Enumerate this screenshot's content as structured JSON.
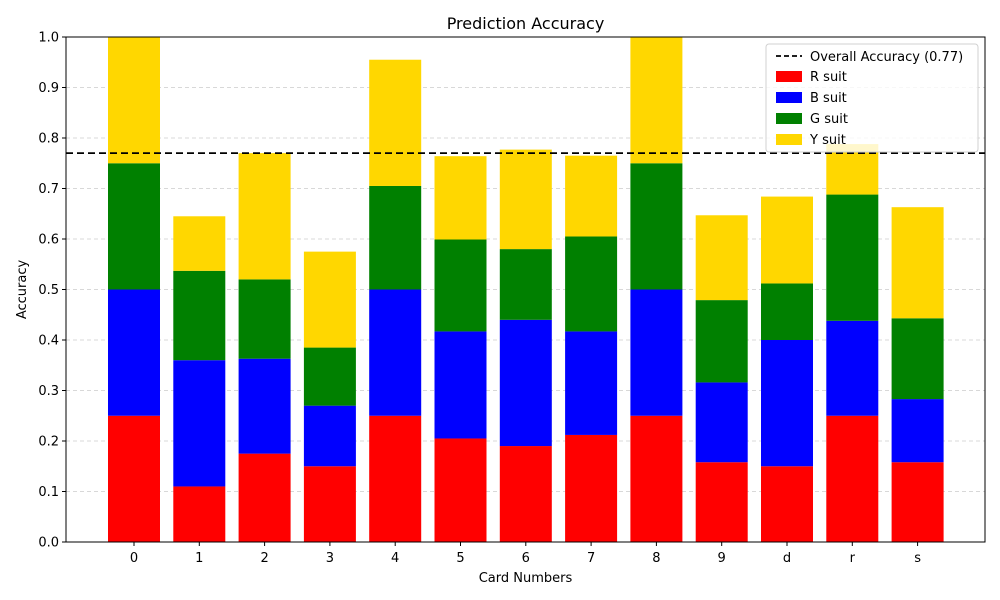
{
  "chart_data": {
    "type": "bar",
    "stacked": true,
    "title": "Prediction Accuracy",
    "xlabel": "Card Numbers",
    "ylabel": "Accuracy",
    "ylim": [
      0,
      1.0
    ],
    "yticks": [
      "0.0",
      "0.1",
      "0.2",
      "0.3",
      "0.4",
      "0.5",
      "0.6",
      "0.7",
      "0.8",
      "0.9",
      "1.0"
    ],
    "grid": "horizontal-dashed",
    "categories": [
      "0",
      "1",
      "2",
      "3",
      "4",
      "5",
      "6",
      "7",
      "8",
      "9",
      "d",
      "r",
      "s"
    ],
    "series": [
      {
        "name": "R suit",
        "color": "#ff0000",
        "values": [
          0.25,
          0.11,
          0.175,
          0.15,
          0.25,
          0.205,
          0.19,
          0.212,
          0.25,
          0.158,
          0.15,
          0.25,
          0.158
        ]
      },
      {
        "name": "B suit",
        "color": "#0000ff",
        "values": [
          0.25,
          0.25,
          0.188,
          0.12,
          0.25,
          0.212,
          0.25,
          0.205,
          0.25,
          0.158,
          0.25,
          0.188,
          0.125
        ]
      },
      {
        "name": "G suit",
        "color": "#008000",
        "values": [
          0.25,
          0.177,
          0.157,
          0.115,
          0.205,
          0.182,
          0.14,
          0.188,
          0.25,
          0.163,
          0.112,
          0.25,
          0.16
        ]
      },
      {
        "name": "Y suit",
        "color": "#ffd700",
        "values": [
          0.25,
          0.108,
          0.25,
          0.19,
          0.25,
          0.165,
          0.197,
          0.16,
          0.25,
          0.168,
          0.172,
          0.1,
          0.22
        ]
      }
    ],
    "reference_line": {
      "label": "Overall Accuracy (0.77)",
      "value": 0.77,
      "style": "dashed",
      "color": "#000000"
    },
    "legend_position": "top-right"
  }
}
